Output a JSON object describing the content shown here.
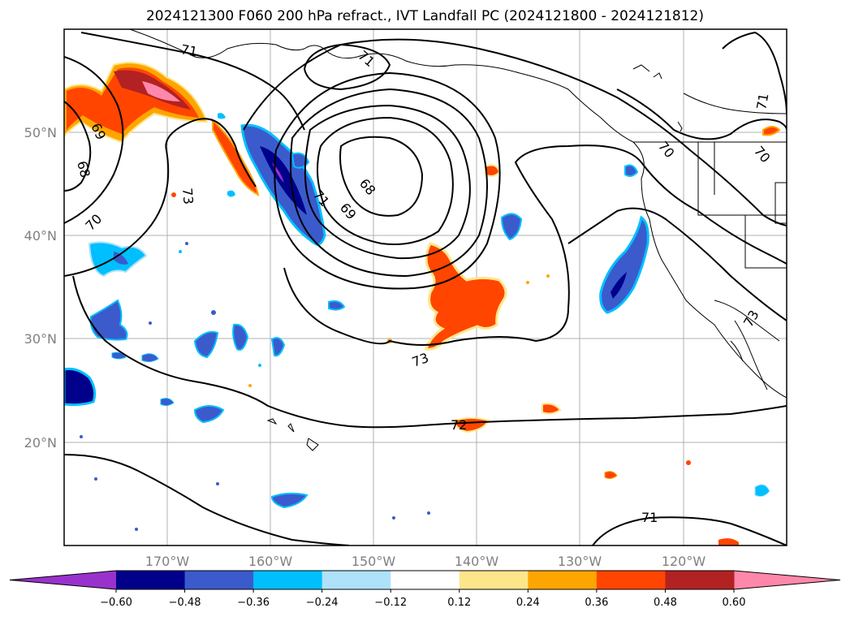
{
  "title": "2024121300 F060 200 hPa refract., IVT Landfall PC (2024121800 - 2024121812)",
  "map": {
    "lon_labels": [
      "170°W",
      "160°W",
      "150°W",
      "140°W",
      "130°W",
      "120°W"
    ],
    "lat_labels": [
      "50°N",
      "40°N",
      "30°N",
      "20°N"
    ],
    "contour_labels": [
      "71",
      "71",
      "71",
      "70",
      "70",
      "69",
      "69",
      "68",
      "68",
      "73",
      "73",
      "70",
      "71",
      "72",
      "71",
      "73"
    ]
  },
  "colorbar": {
    "ticks": [
      "−0.60",
      "−0.48",
      "−0.36",
      "−0.24",
      "−0.12",
      "0.12",
      "0.24",
      "0.36",
      "0.48",
      "0.60"
    ],
    "colors": [
      "#9932cc",
      "#00008b",
      "#3b5bcc",
      "#00bfff",
      "#aee2fa",
      "#ffffff",
      "#fde68a",
      "#ffa500",
      "#ff4500",
      "#b22222",
      "#ff88aa"
    ]
  }
}
